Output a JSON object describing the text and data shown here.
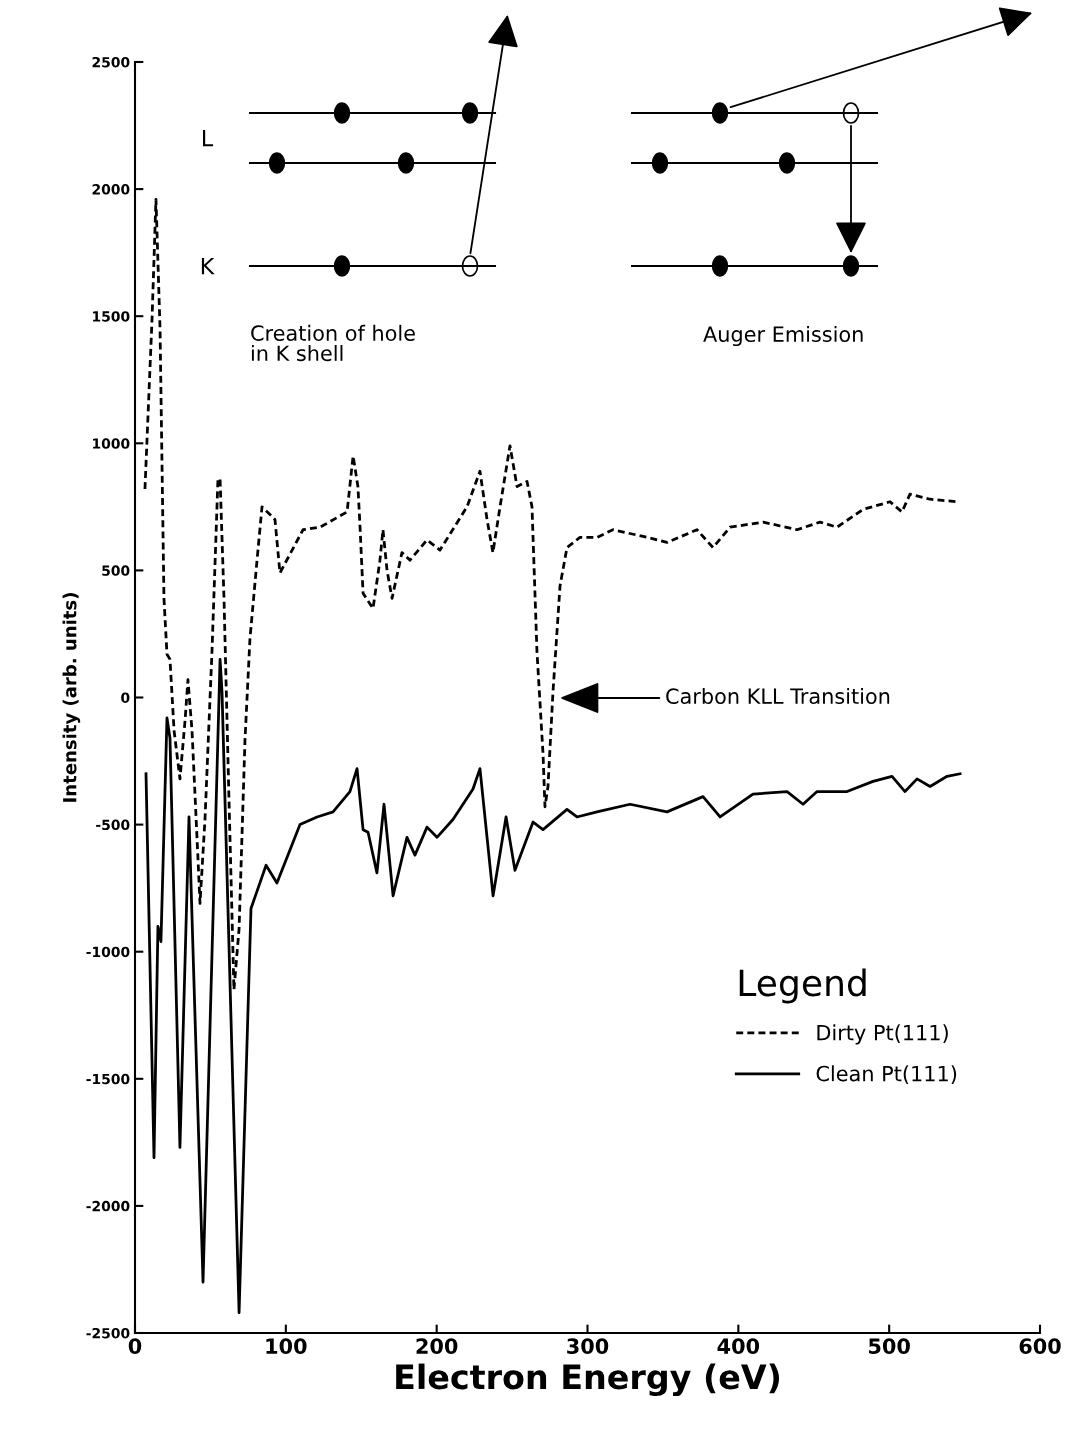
{
  "chart_data": {
    "type": "line",
    "xlabel": "Electron Energy (eV)",
    "ylabel": "Intensity (arb. units)",
    "xlim": [
      0,
      600
    ],
    "xticks": [
      0,
      100,
      200,
      300,
      400,
      500,
      600
    ],
    "ylim": [
      -2500,
      2500
    ],
    "yticks": [
      -2500,
      -2000,
      -1500,
      -1000,
      -500,
      0,
      500,
      1000,
      1500,
      2000,
      2500
    ],
    "grid": false,
    "legend": "bottom right",
    "legend_title": "Legend",
    "marker": "none",
    "annotations": [
      "Carbon KLL Transition",
      "L",
      "K",
      "Creation of hole\nin K shell",
      "Auger Emission"
    ],
    "series": [
      {
        "name": "Dirty Pt(111)",
        "color": "#000000",
        "line_style": "dashed",
        "x": [
          6.6,
          11.3,
          13.9,
          16.6,
          19.2,
          21.2,
          23.2,
          25.9,
          29.8,
          33.2,
          35.1,
          37.8,
          41.8,
          43.1,
          46.4,
          51.1,
          55,
          56.4,
          59,
          62.3,
          65.6,
          69,
          72.9,
          76.2,
          80.9,
          84.2,
          89.5,
          92.8,
          96.1,
          111.4,
          122.7,
          140.6,
          144.6,
          147.8,
          149.2,
          151.2,
          157.8,
          162.4,
          164.4,
          167.1,
          170.4,
          177,
          182.3,
          193.6,
          202.2,
          220.1,
          228.7,
          233.4,
          237.3,
          242,
          248.6,
          253.3,
          259.9,
          263.2,
          266.5,
          270.5,
          271.8,
          273.8,
          277.1,
          281.8,
          286.4,
          295,
          306.3,
          316.9,
          339.5,
          352.7,
          372.6,
          383.2,
          394.5,
          416.4,
          438.9,
          454.2,
          465.4,
          482.7,
          500.6,
          508.5,
          513.8,
          527.1,
          545
        ],
        "values": [
          820,
          1490,
          1960,
          1450,
          390,
          170,
          150,
          -130,
          -320,
          -90,
          70,
          -130,
          -640,
          -810,
          -480,
          190,
          860,
          860,
          390,
          -400,
          -1150,
          -910,
          -170,
          230,
          540,
          750,
          720,
          700,
          490,
          660,
          670,
          730,
          950,
          830,
          670,
          410,
          350,
          540,
          660,
          500,
          390,
          570,
          540,
          620,
          580,
          750,
          890,
          700,
          570,
          750,
          990,
          830,
          850,
          750,
          180,
          -220,
          -430,
          -350,
          20,
          440,
          590,
          630,
          630,
          660,
          630,
          610,
          660,
          590,
          670,
          690,
          660,
          690,
          670,
          740,
          770,
          730,
          800,
          780,
          770
        ]
      },
      {
        "name": "Clean Pt(111)",
        "color": "#000000",
        "line_style": "solid",
        "x": [
          7.3,
          12.6,
          15.2,
          17.2,
          21.2,
          23.2,
          29.8,
          35.8,
          45.1,
          56.4,
          57.7,
          69,
          76.9,
          86.9,
          94.1,
          109.4,
          120.7,
          131.3,
          142.5,
          147.2,
          151.2,
          154.5,
          160.4,
          165.1,
          171.1,
          180.3,
          185.6,
          193.6,
          200.2,
          210.8,
          224.1,
          228.7,
          237.4,
          246,
          251.9,
          263.9,
          270.5,
          286.4,
          293,
          306.3,
          328.2,
          352.7,
          376.6,
          387.9,
          409.7,
          432.3,
          442.9,
          452.2,
          472.1,
          489.3,
          501.9,
          510.5,
          518.5,
          527.1,
          538.4,
          547
        ],
        "values": [
          -300,
          -1810,
          -900,
          -960,
          -80,
          -160,
          -1770,
          -470,
          -2300,
          150,
          20,
          -2420,
          -830,
          -660,
          -730,
          -500,
          -470,
          -450,
          -370,
          -280,
          -520,
          -530,
          -690,
          -420,
          -780,
          -550,
          -620,
          -510,
          -550,
          -480,
          -360,
          -280,
          -780,
          -470,
          -680,
          -490,
          -520,
          -440,
          -470,
          -450,
          -420,
          -450,
          -390,
          -470,
          -380,
          -370,
          -420,
          -370,
          -370,
          -330,
          -310,
          -370,
          -320,
          -350,
          -310,
          -300
        ]
      }
    ]
  }
}
